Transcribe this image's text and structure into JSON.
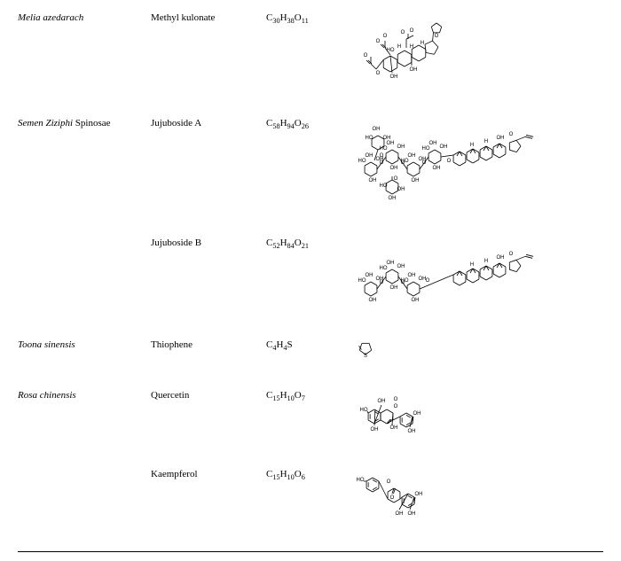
{
  "rows": [
    {
      "species_html": "Melia azedarach",
      "compound": "Methyl kulonate",
      "formula_html": "C<sub>30</sub>H<sub>38</sub>O<sub>11</sub>",
      "struct_key": "methylkulonate"
    },
    {
      "species_html": "Semen Ziziphi <span class='roman'>Spinosae</span>",
      "compound": "Jujuboside A",
      "formula_html": "C<sub>58</sub>H<sub>94</sub>O<sub>26</sub>",
      "struct_key": "jujubosideA"
    },
    {
      "species_html": "",
      "compound": "Jujuboside B",
      "formula_html": "C<sub>52</sub>H<sub>84</sub>O<sub>21</sub>",
      "struct_key": "jujubosideB"
    },
    {
      "species_html": "Toona sinensis",
      "compound": "Thiophene",
      "formula_html": "C<sub>4</sub>H<sub>4</sub>S",
      "struct_key": "thiophene"
    },
    {
      "species_html": "Rosa chinensis",
      "compound": "Quercetin",
      "formula_html": "C<sub>15</sub>H<sub>10</sub>O<sub>7</sub>",
      "struct_key": "quercetin"
    },
    {
      "species_html": "",
      "compound": "Kaempferol",
      "formula_html": "C<sub>15</sub>H<sub>10</sub>O<sub>6</sub>",
      "struct_key": "kaempferol"
    }
  ],
  "style": {
    "bond_color": "#000000",
    "text_color": "#000000",
    "label_fontsize": 6
  }
}
